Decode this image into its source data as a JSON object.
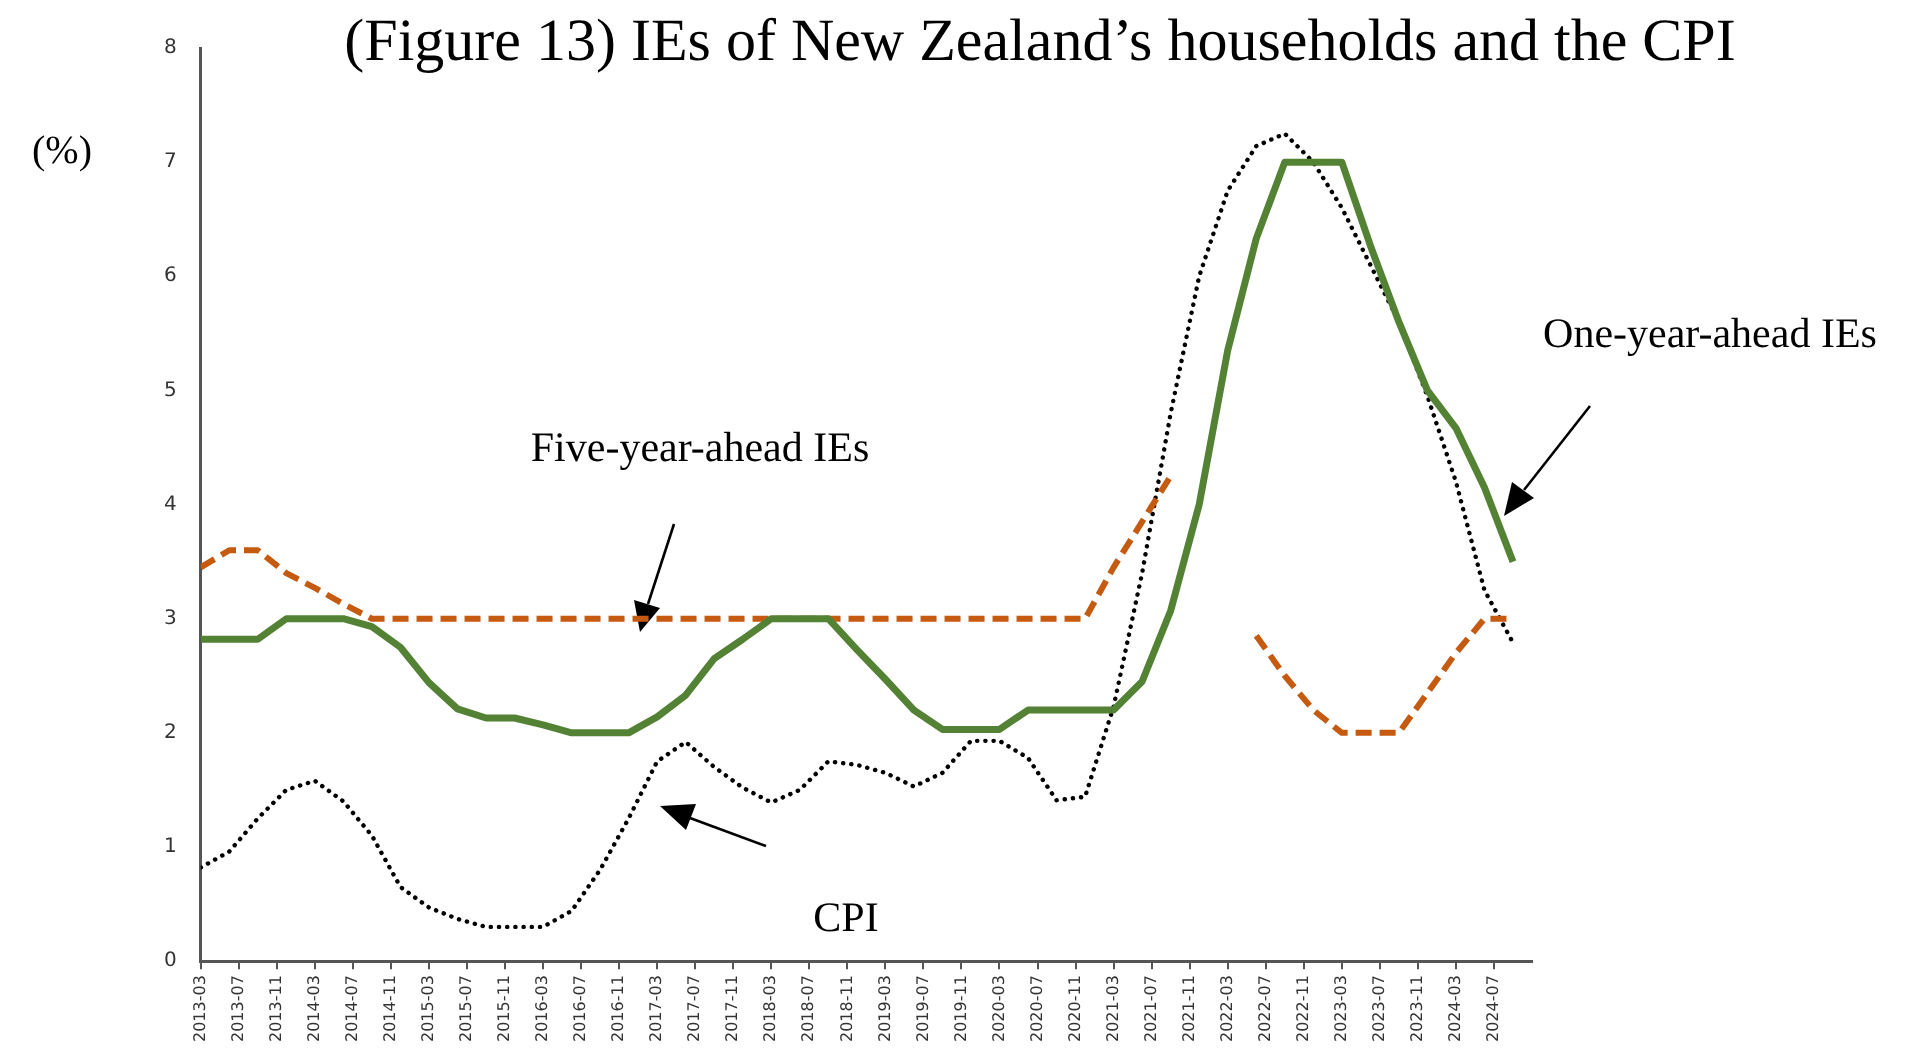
{
  "chart_data": {
    "type": "line",
    "title": "(Figure 13) IEs of New Zealand’s households and the CPI",
    "ylabel": "(%)",
    "x": [
      "2013-03",
      "2013-06",
      "2013-09",
      "2013-12",
      "2014-03",
      "2014-06",
      "2014-09",
      "2014-12",
      "2015-03",
      "2015-06",
      "2015-09",
      "2015-12",
      "2016-03",
      "2016-06",
      "2016-09",
      "2016-12",
      "2017-03",
      "2017-06",
      "2017-09",
      "2017-12",
      "2018-03",
      "2018-06",
      "2018-09",
      "2018-12",
      "2019-03",
      "2019-06",
      "2019-09",
      "2019-12",
      "2020-03",
      "2020-06",
      "2020-09",
      "2020-12",
      "2021-03",
      "2021-06",
      "2021-09",
      "2021-12",
      "2022-03",
      "2022-06",
      "2022-09",
      "2022-12",
      "2023-03",
      "2023-06",
      "2023-09",
      "2023-12",
      "2024-03",
      "2024-06",
      "2024-09"
    ],
    "series": [
      {
        "color": "#548235",
        "line_style": "solid",
        "values": [
          2.82,
          2.82,
          2.82,
          3.0,
          3.0,
          3.0,
          2.93,
          2.75,
          2.44,
          2.21,
          2.13,
          2.13,
          2.07,
          2.0,
          2.0,
          2.0,
          2.14,
          2.33,
          2.65,
          2.82,
          3.0,
          3.0,
          3.0,
          2.73,
          2.47,
          2.2,
          2.03,
          2.03,
          2.03,
          2.2,
          2.2,
          2.2,
          2.2,
          2.45,
          3.07,
          4.0,
          5.35,
          6.33,
          7.0,
          7.0,
          7.0,
          6.27,
          5.6,
          5.0,
          4.67,
          4.15,
          3.5
        ]
      },
      {
        "color": "#c55a11",
        "line_style": "dashed",
        "values": [
          3.45,
          3.6,
          3.6,
          3.4,
          3.27,
          3.13,
          3.0,
          3.0,
          3.0,
          3.0,
          3.0,
          3.0,
          3.0,
          3.0,
          3.0,
          3.0,
          3.0,
          3.0,
          3.0,
          3.0,
          3.0,
          3.0,
          3.0,
          3.0,
          3.0,
          3.0,
          3.0,
          3.0,
          3.0,
          3.0,
          3.0,
          3.0,
          3.45,
          3.85,
          4.25,
          null,
          null,
          2.85,
          2.5,
          2.2,
          2.0,
          2.0,
          2.0,
          2.35,
          2.7,
          3.0,
          3.0
        ]
      },
      {
        "color": "#000000",
        "line_style": "dotted",
        "values": [
          0.82,
          0.96,
          1.25,
          1.5,
          1.58,
          1.4,
          1.1,
          0.65,
          0.47,
          0.37,
          0.3,
          0.3,
          0.3,
          0.44,
          0.8,
          1.25,
          1.75,
          1.92,
          1.7,
          1.52,
          1.39,
          1.5,
          1.75,
          1.72,
          1.65,
          1.53,
          1.65,
          1.93,
          1.93,
          1.78,
          1.41,
          1.44,
          2.23,
          3.4,
          4.8,
          6.0,
          6.75,
          7.14,
          7.25,
          7.0,
          6.6,
          6.1,
          5.6,
          4.95,
          4.2,
          3.25,
          2.79
        ]
      }
    ],
    "xlim": [
      "2013-03",
      "2024-11"
    ],
    "xticks": [
      "2013-03",
      "2013-07",
      "2013-11",
      "2014-03",
      "2014-07",
      "2014-11",
      "2015-03",
      "2015-07",
      "2015-11",
      "2016-03",
      "2016-07",
      "2016-11",
      "2017-03",
      "2017-07",
      "2017-11",
      "2018-03",
      "2018-07",
      "2018-11",
      "2019-03",
      "2019-07",
      "2019-11",
      "2020-03",
      "2020-07",
      "2020-11",
      "2021-03",
      "2021-07",
      "2021-11",
      "2022-03",
      "2022-07",
      "2022-11",
      "2023-03",
      "2023-07",
      "2023-11",
      "2024-03",
      "2024-07"
    ],
    "ylim": [
      0,
      8
    ],
    "yticks": [
      0,
      1,
      2,
      3,
      4,
      5,
      6,
      7,
      8
    ],
    "grid": false,
    "legend": false,
    "marker": "none",
    "annotations": [
      "Five-year-ahead IEs",
      "CPI",
      "One-year-ahead IEs"
    ]
  }
}
